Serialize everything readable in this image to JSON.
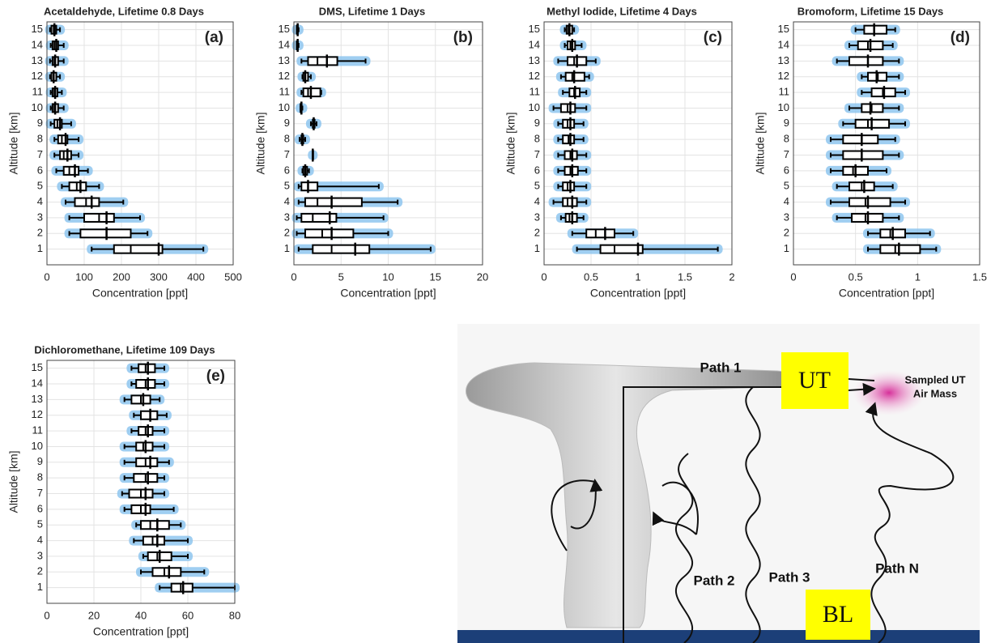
{
  "chart_data": [
    {
      "type": "box",
      "title": "Acetaldehyde, Lifetime 0.8 Days",
      "panel_label": "(a)",
      "xlabel": "Concentration [ppt]",
      "ylabel": "Altitude [km]",
      "xlim": [
        0,
        500
      ],
      "xticks": [
        0,
        100,
        200,
        300,
        400,
        500
      ],
      "ylim": [
        0,
        15.5
      ],
      "yticks": [
        1,
        2,
        3,
        4,
        5,
        6,
        7,
        8,
        9,
        10,
        11,
        12,
        13,
        14,
        15
      ],
      "grid": true,
      "color": "#8ec5ee",
      "y": [
        1,
        2,
        3,
        4,
        5,
        6,
        7,
        8,
        9,
        10,
        11,
        12,
        13,
        14,
        15
      ],
      "boxes": {
        "whisker_low": [
          120,
          60,
          60,
          50,
          40,
          25,
          20,
          20,
          10,
          10,
          10,
          8,
          8,
          10,
          8
        ],
        "q1": [
          180,
          90,
          100,
          75,
          60,
          45,
          35,
          30,
          20,
          15,
          15,
          12,
          15,
          15,
          12
        ],
        "median": [
          225,
          160,
          140,
          105,
          80,
          60,
          45,
          40,
          28,
          20,
          20,
          18,
          20,
          20,
          18
        ],
        "q3": [
          310,
          225,
          180,
          140,
          105,
          85,
          65,
          55,
          40,
          30,
          28,
          25,
          30,
          30,
          25
        ],
        "whisker_high": [
          420,
          270,
          250,
          205,
          140,
          110,
          85,
          85,
          65,
          45,
          40,
          35,
          45,
          45,
          35
        ],
        "mean": [
          300,
          160,
          160,
          120,
          90,
          75,
          55,
          50,
          35,
          22,
          22,
          18,
          22,
          25,
          20
        ]
      }
    },
    {
      "type": "box",
      "title": "DMS, Lifetime 1 Days",
      "panel_label": "(b)",
      "xlabel": "Concentration [ppt]",
      "ylabel": "Altitude [km]",
      "xlim": [
        0,
        20
      ],
      "xticks": [
        0,
        5,
        10,
        15,
        20
      ],
      "ylim": [
        0,
        15.5
      ],
      "yticks": [
        1,
        2,
        3,
        4,
        5,
        6,
        7,
        8,
        9,
        10,
        11,
        12,
        13,
        14,
        15
      ],
      "grid": true,
      "color": "#8ec5ee",
      "y": [
        1,
        2,
        3,
        4,
        5,
        6,
        7,
        8,
        9,
        10,
        11,
        12,
        13,
        14,
        15
      ],
      "boxes": {
        "whisker_low": [
          0.5,
          0.3,
          0.3,
          0.5,
          0.5,
          0.9,
          2,
          0.6,
          1.8,
          0.7,
          0.8,
          0.9,
          0.8,
          0.3,
          0.3
        ],
        "q1": [
          2,
          1.2,
          0.8,
          1.2,
          0.8,
          1,
          2,
          0.8,
          2,
          0.7,
          1,
          1,
          1.5,
          0.3,
          0.3
        ],
        "median": [
          4,
          3,
          2,
          2.5,
          1.5,
          1.2,
          2,
          0.9,
          2.1,
          0.8,
          1.5,
          1.2,
          2.5,
          0.4,
          0.4
        ],
        "q3": [
          8,
          6.3,
          4.5,
          7.2,
          2.5,
          1.4,
          2,
          1,
          2.2,
          0.8,
          2.8,
          1.5,
          4.6,
          0.4,
          0.4
        ],
        "whisker_high": [
          14.5,
          10,
          9.5,
          11,
          9,
          1.6,
          2,
          1.2,
          2.4,
          0.9,
          2.9,
          1.8,
          7.6,
          0.5,
          0.5
        ],
        "mean": [
          6.5,
          4,
          3.8,
          4,
          1.5,
          1.2,
          2,
          0.9,
          2.1,
          0.8,
          1.8,
          1.2,
          3.5,
          0.4,
          0.4
        ]
      }
    },
    {
      "type": "box",
      "title": "Methyl Iodide, Lifetime 4 Days",
      "panel_label": "(c)",
      "xlabel": "Concentration [ppt]",
      "ylabel": "Altitude [km]",
      "xlim": [
        0,
        2
      ],
      "xticks": [
        0,
        0.5,
        1,
        1.5,
        2
      ],
      "ylim": [
        0,
        15.5
      ],
      "yticks": [
        1,
        2,
        3,
        4,
        5,
        6,
        7,
        8,
        9,
        10,
        11,
        12,
        13,
        14,
        15
      ],
      "grid": true,
      "color": "#8ec5ee",
      "y": [
        1,
        2,
        3,
        4,
        5,
        6,
        7,
        8,
        9,
        10,
        11,
        12,
        13,
        14,
        15
      ],
      "boxes": {
        "whisker_low": [
          0.35,
          0.3,
          0.18,
          0.1,
          0.15,
          0.15,
          0.15,
          0.15,
          0.15,
          0.1,
          0.2,
          0.18,
          0.15,
          0.22,
          0.22
        ],
        "q1": [
          0.6,
          0.45,
          0.23,
          0.2,
          0.2,
          0.22,
          0.22,
          0.2,
          0.2,
          0.18,
          0.27,
          0.23,
          0.25,
          0.25,
          0.24
        ],
        "median": [
          0.75,
          0.55,
          0.27,
          0.25,
          0.25,
          0.28,
          0.28,
          0.26,
          0.25,
          0.25,
          0.32,
          0.3,
          0.32,
          0.28,
          0.26
        ],
        "q3": [
          1.05,
          0.75,
          0.35,
          0.35,
          0.32,
          0.36,
          0.35,
          0.32,
          0.32,
          0.33,
          0.38,
          0.43,
          0.45,
          0.33,
          0.3
        ],
        "whisker_high": [
          1.85,
          0.95,
          0.42,
          0.45,
          0.45,
          0.45,
          0.45,
          0.42,
          0.42,
          0.45,
          0.45,
          0.48,
          0.55,
          0.4,
          0.32
        ],
        "mean": [
          1.0,
          0.65,
          0.3,
          0.3,
          0.28,
          0.3,
          0.3,
          0.28,
          0.28,
          0.28,
          0.33,
          0.32,
          0.35,
          0.3,
          0.27
        ]
      }
    },
    {
      "type": "box",
      "title": "Bromoform, Lifetime 15 Days",
      "panel_label": "(d)",
      "xlabel": "Concentration [ppt]",
      "ylabel": "Altitude [km]",
      "xlim": [
        0,
        1.5
      ],
      "xticks": [
        0,
        0.5,
        1,
        1.5
      ],
      "ylim": [
        0,
        15.5
      ],
      "yticks": [
        1,
        2,
        3,
        4,
        5,
        6,
        7,
        8,
        9,
        10,
        11,
        12,
        13,
        14,
        15
      ],
      "grid": true,
      "color": "#8ec5ee",
      "y": [
        1,
        2,
        3,
        4,
        5,
        6,
        7,
        8,
        9,
        10,
        11,
        12,
        13,
        14,
        15
      ],
      "boxes": {
        "whisker_low": [
          0.6,
          0.6,
          0.35,
          0.3,
          0.35,
          0.3,
          0.3,
          0.3,
          0.4,
          0.45,
          0.55,
          0.55,
          0.35,
          0.45,
          0.5
        ],
        "q1": [
          0.7,
          0.7,
          0.47,
          0.45,
          0.45,
          0.4,
          0.4,
          0.4,
          0.5,
          0.55,
          0.63,
          0.6,
          0.45,
          0.52,
          0.57
        ],
        "median": [
          0.82,
          0.78,
          0.58,
          0.58,
          0.55,
          0.48,
          0.55,
          0.55,
          0.6,
          0.63,
          0.72,
          0.68,
          0.6,
          0.6,
          0.65
        ],
        "q3": [
          1.02,
          0.9,
          0.72,
          0.78,
          0.65,
          0.6,
          0.72,
          0.68,
          0.77,
          0.72,
          0.82,
          0.75,
          0.72,
          0.72,
          0.75
        ],
        "whisker_high": [
          1.15,
          1.1,
          0.85,
          0.9,
          0.8,
          0.75,
          0.85,
          0.82,
          0.9,
          0.85,
          0.9,
          0.85,
          0.85,
          0.8,
          0.82
        ],
        "mean": [
          0.85,
          0.8,
          0.6,
          0.6,
          0.57,
          0.5,
          0.55,
          0.55,
          0.63,
          0.62,
          0.73,
          0.67,
          0.6,
          0.62,
          0.65
        ]
      }
    },
    {
      "type": "box",
      "title": "Dichloromethane, Lifetime 109 Days",
      "panel_label": "(e)",
      "xlabel": "Concentration [ppt]",
      "ylabel": "Altitude [km]",
      "xlim": [
        0,
        80
      ],
      "xticks": [
        0,
        20,
        40,
        60,
        80
      ],
      "ylim": [
        0,
        15.5
      ],
      "yticks": [
        1,
        2,
        3,
        4,
        5,
        6,
        7,
        8,
        9,
        10,
        11,
        12,
        13,
        14,
        15
      ],
      "grid": true,
      "color": "#8ec5ee",
      "y": [
        1,
        2,
        3,
        4,
        5,
        6,
        7,
        8,
        9,
        10,
        11,
        12,
        13,
        14,
        15
      ],
      "boxes": {
        "whisker_low": [
          48,
          40,
          41,
          37,
          38,
          33,
          32,
          33,
          33,
          33,
          36,
          37,
          33,
          36,
          36
        ],
        "q1": [
          53,
          45,
          43,
          41,
          40,
          36,
          35,
          37,
          38,
          38,
          39,
          40,
          36,
          38,
          39
        ],
        "median": [
          57,
          50,
          47,
          45,
          44,
          40,
          40,
          42,
          42,
          41,
          42,
          44,
          40,
          42,
          42
        ],
        "q3": [
          62,
          57,
          53,
          50,
          52,
          44,
          45,
          47,
          47,
          45,
          45,
          47,
          44,
          46,
          46
        ],
        "whisker_high": [
          80,
          67,
          60,
          60,
          57,
          54,
          50,
          50,
          52,
          50,
          50,
          51,
          48,
          50,
          50
        ],
        "mean": [
          58,
          52,
          48,
          47,
          47,
          42,
          42,
          43,
          44,
          42,
          43,
          44,
          41,
          43,
          43
        ]
      }
    }
  ],
  "diagram": {
    "path_1": "Path 1",
    "path_2": "Path 2",
    "path_3": "Path 3",
    "path_n": "Path N",
    "ut": "UT",
    "bl": "BL",
    "sampled": [
      "Sampled UT",
      "Air Mass"
    ]
  }
}
